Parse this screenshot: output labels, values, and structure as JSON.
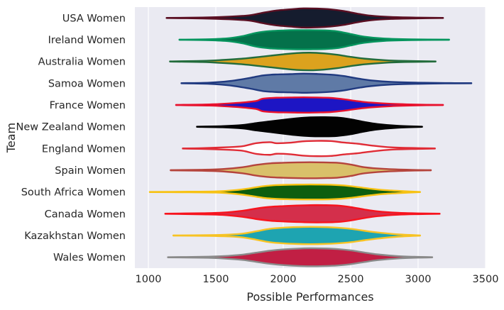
{
  "chart_data": {
    "type": "violin",
    "orientation": "horizontal",
    "xlabel": "Possible Performances",
    "ylabel": "Team",
    "xlim": [
      900,
      3500
    ],
    "xticks": [
      1000,
      1500,
      2000,
      2500,
      3000,
      3500
    ],
    "xtick_labels": [
      "1000",
      "1500",
      "2000",
      "2500",
      "3000",
      "3500"
    ],
    "background": "#eaeaf2",
    "grid": true,
    "series": [
      {
        "team": "USA Women",
        "fill": "#151c2e",
        "edge": "#5a0f22",
        "min": 1135,
        "max": 3185,
        "density": [
          [
            1135,
            0.01
          ],
          [
            1400,
            0.05
          ],
          [
            1600,
            0.14
          ],
          [
            1750,
            0.28
          ],
          [
            1850,
            0.55
          ],
          [
            1950,
            0.78
          ],
          [
            2050,
            0.9
          ],
          [
            2150,
            1.0
          ],
          [
            2250,
            0.98
          ],
          [
            2350,
            0.9
          ],
          [
            2450,
            0.72
          ],
          [
            2550,
            0.45
          ],
          [
            2650,
            0.24
          ],
          [
            2800,
            0.1
          ],
          [
            3000,
            0.04
          ],
          [
            3185,
            0.01
          ]
        ]
      },
      {
        "team": "Ireland Women",
        "fill": "#04714a",
        "edge": "#06955e",
        "min": 1230,
        "max": 3230,
        "density": [
          [
            1230,
            0.01
          ],
          [
            1450,
            0.05
          ],
          [
            1600,
            0.16
          ],
          [
            1700,
            0.38
          ],
          [
            1800,
            0.72
          ],
          [
            1900,
            0.9
          ],
          [
            2000,
            0.97
          ],
          [
            2100,
            1.0
          ],
          [
            2200,
            1.0
          ],
          [
            2300,
            0.98
          ],
          [
            2400,
            0.88
          ],
          [
            2500,
            0.6
          ],
          [
            2600,
            0.32
          ],
          [
            2750,
            0.12
          ],
          [
            2950,
            0.04
          ],
          [
            3230,
            0.01
          ]
        ]
      },
      {
        "team": "Australia Women",
        "fill": "#dca21e",
        "edge": "#236c3c",
        "min": 1160,
        "max": 3130,
        "density": [
          [
            1160,
            0.01
          ],
          [
            1400,
            0.06
          ],
          [
            1550,
            0.16
          ],
          [
            1700,
            0.3
          ],
          [
            1850,
            0.52
          ],
          [
            2000,
            0.75
          ],
          [
            2100,
            0.88
          ],
          [
            2200,
            0.92
          ],
          [
            2300,
            0.85
          ],
          [
            2400,
            0.7
          ],
          [
            2500,
            0.48
          ],
          [
            2600,
            0.3
          ],
          [
            2750,
            0.14
          ],
          [
            2900,
            0.06
          ],
          [
            3130,
            0.01
          ]
        ]
      },
      {
        "team": "Samoa Women",
        "fill": "#5f7aa6",
        "edge": "#203a80",
        "min": 1245,
        "max": 3395,
        "density": [
          [
            1245,
            0.01
          ],
          [
            1450,
            0.06
          ],
          [
            1600,
            0.22
          ],
          [
            1750,
            0.55
          ],
          [
            1850,
            0.82
          ],
          [
            1950,
            0.92
          ],
          [
            2050,
            0.95
          ],
          [
            2150,
            1.0
          ],
          [
            2250,
            0.97
          ],
          [
            2350,
            0.9
          ],
          [
            2450,
            0.75
          ],
          [
            2550,
            0.5
          ],
          [
            2650,
            0.3
          ],
          [
            2800,
            0.14
          ],
          [
            3000,
            0.06
          ],
          [
            3200,
            0.02
          ],
          [
            3395,
            0.01
          ]
        ]
      },
      {
        "team": "France Women",
        "fill": "#1d15c4",
        "edge": "#e8112d",
        "min": 1205,
        "max": 3185,
        "density": [
          [
            1205,
            0.01
          ],
          [
            1450,
            0.06
          ],
          [
            1600,
            0.16
          ],
          [
            1700,
            0.26
          ],
          [
            1800,
            0.42
          ],
          [
            1850,
            0.66
          ],
          [
            1950,
            0.76
          ],
          [
            2050,
            0.78
          ],
          [
            2150,
            0.8
          ],
          [
            2250,
            0.78
          ],
          [
            2350,
            0.74
          ],
          [
            2450,
            0.6
          ],
          [
            2550,
            0.4
          ],
          [
            2650,
            0.25
          ],
          [
            2800,
            0.12
          ],
          [
            3000,
            0.04
          ],
          [
            3185,
            0.01
          ]
        ]
      },
      {
        "team": "New Zealand Women",
        "fill": "#020202",
        "edge": "#000000",
        "min": 1360,
        "max": 3030,
        "density": [
          [
            1360,
            0.01
          ],
          [
            1550,
            0.06
          ],
          [
            1700,
            0.18
          ],
          [
            1800,
            0.38
          ],
          [
            1900,
            0.55
          ],
          [
            2000,
            0.72
          ],
          [
            2100,
            0.88
          ],
          [
            2200,
            0.98
          ],
          [
            2300,
            1.0
          ],
          [
            2400,
            0.96
          ],
          [
            2500,
            0.78
          ],
          [
            2600,
            0.5
          ],
          [
            2700,
            0.28
          ],
          [
            2850,
            0.1
          ],
          [
            3030,
            0.01
          ]
        ]
      },
      {
        "team": "England Women",
        "fill": "#ffffff",
        "edge": "#e02c36",
        "min": 1255,
        "max": 3125,
        "density": [
          [
            1255,
            0.01
          ],
          [
            1400,
            0.04
          ],
          [
            1600,
            0.14
          ],
          [
            1700,
            0.24
          ],
          [
            1800,
            0.56
          ],
          [
            1900,
            0.66
          ],
          [
            1950,
            0.55
          ],
          [
            2050,
            0.6
          ],
          [
            2150,
            0.75
          ],
          [
            2250,
            0.8
          ],
          [
            2350,
            0.78
          ],
          [
            2450,
            0.62
          ],
          [
            2550,
            0.5
          ],
          [
            2650,
            0.32
          ],
          [
            2800,
            0.12
          ],
          [
            3000,
            0.04
          ],
          [
            3125,
            0.01
          ]
        ]
      },
      {
        "team": "Spain Women",
        "fill": "#d9c06a",
        "edge": "#b5443c",
        "min": 1165,
        "max": 3095,
        "density": [
          [
            1165,
            0.01
          ],
          [
            1400,
            0.05
          ],
          [
            1550,
            0.12
          ],
          [
            1700,
            0.32
          ],
          [
            1800,
            0.56
          ],
          [
            1900,
            0.72
          ],
          [
            2000,
            0.78
          ],
          [
            2100,
            0.82
          ],
          [
            2200,
            0.84
          ],
          [
            2300,
            0.82
          ],
          [
            2400,
            0.78
          ],
          [
            2500,
            0.6
          ],
          [
            2600,
            0.32
          ],
          [
            2750,
            0.14
          ],
          [
            2950,
            0.04
          ],
          [
            3095,
            0.01
          ]
        ]
      },
      {
        "team": "South Africa Women",
        "fill": "#0d5e0f",
        "edge": "#f7c214",
        "min": 1010,
        "max": 3015,
        "density": [
          [
            1010,
            0.01
          ],
          [
            1300,
            0.03
          ],
          [
            1500,
            0.06
          ],
          [
            1650,
            0.2
          ],
          [
            1750,
            0.38
          ],
          [
            1850,
            0.6
          ],
          [
            1950,
            0.72
          ],
          [
            2050,
            0.76
          ],
          [
            2150,
            0.78
          ],
          [
            2250,
            0.78
          ],
          [
            2350,
            0.76
          ],
          [
            2450,
            0.68
          ],
          [
            2550,
            0.52
          ],
          [
            2650,
            0.34
          ],
          [
            2750,
            0.2
          ],
          [
            2900,
            0.08
          ],
          [
            3015,
            0.01
          ]
        ]
      },
      {
        "team": "Canada Women",
        "fill": "#d42f4b",
        "edge": "#f7141e",
        "min": 1125,
        "max": 3160,
        "density": [
          [
            1125,
            0.01
          ],
          [
            1400,
            0.06
          ],
          [
            1550,
            0.12
          ],
          [
            1700,
            0.32
          ],
          [
            1800,
            0.55
          ],
          [
            1900,
            0.72
          ],
          [
            2000,
            0.8
          ],
          [
            2100,
            0.86
          ],
          [
            2200,
            0.9
          ],
          [
            2300,
            0.9
          ],
          [
            2400,
            0.86
          ],
          [
            2500,
            0.7
          ],
          [
            2600,
            0.45
          ],
          [
            2700,
            0.25
          ],
          [
            2850,
            0.1
          ],
          [
            3000,
            0.04
          ],
          [
            3160,
            0.01
          ]
        ]
      },
      {
        "team": "Kazakhstan Women",
        "fill": "#1ea4b1",
        "edge": "#f7c324",
        "min": 1185,
        "max": 3015,
        "density": [
          [
            1185,
            0.01
          ],
          [
            1450,
            0.04
          ],
          [
            1600,
            0.1
          ],
          [
            1700,
            0.2
          ],
          [
            1800,
            0.44
          ],
          [
            1900,
            0.7
          ],
          [
            2000,
            0.82
          ],
          [
            2100,
            0.88
          ],
          [
            2200,
            0.9
          ],
          [
            2300,
            0.88
          ],
          [
            2400,
            0.82
          ],
          [
            2500,
            0.7
          ],
          [
            2600,
            0.5
          ],
          [
            2700,
            0.32
          ],
          [
            2850,
            0.12
          ],
          [
            3015,
            0.01
          ]
        ]
      },
      {
        "team": "Wales Women",
        "fill": "#c11f44",
        "edge": "#8a8a8a",
        "min": 1145,
        "max": 3105,
        "density": [
          [
            1145,
            0.01
          ],
          [
            1400,
            0.05
          ],
          [
            1550,
            0.12
          ],
          [
            1700,
            0.28
          ],
          [
            1800,
            0.48
          ],
          [
            1900,
            0.68
          ],
          [
            2000,
            0.82
          ],
          [
            2100,
            0.9
          ],
          [
            2200,
            0.94
          ],
          [
            2300,
            0.92
          ],
          [
            2400,
            0.86
          ],
          [
            2500,
            0.72
          ],
          [
            2600,
            0.5
          ],
          [
            2700,
            0.3
          ],
          [
            2850,
            0.12
          ],
          [
            3000,
            0.04
          ],
          [
            3105,
            0.01
          ]
        ]
      }
    ]
  }
}
